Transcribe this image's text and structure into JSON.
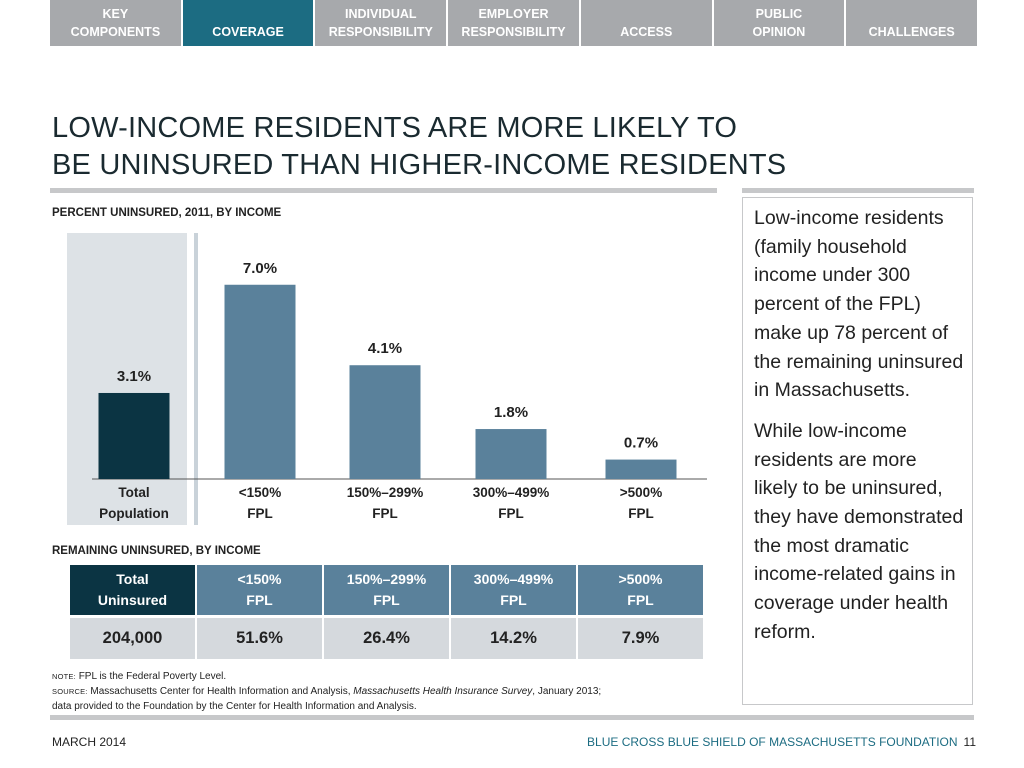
{
  "nav": {
    "tabs": [
      {
        "line1": "KEY",
        "line2": "COMPONENTS",
        "active": false
      },
      {
        "line1": "",
        "line2": "COVERAGE",
        "active": true
      },
      {
        "line1": "INDIVIDUAL",
        "line2": "RESPONSIBILITY",
        "active": false
      },
      {
        "line1": "EMPLOYER",
        "line2": "RESPONSIBILITY",
        "active": false
      },
      {
        "line1": "",
        "line2": "ACCESS",
        "active": false
      },
      {
        "line1": "PUBLIC",
        "line2": "OPINION",
        "active": false
      },
      {
        "line1": "",
        "line2": "CHALLENGES",
        "active": false
      }
    ]
  },
  "title": {
    "line1": "LOW-INCOME RESIDENTS ARE MORE LIKELY TO",
    "line2": "BE UNINSURED THAN HIGHER-INCOME RESIDENTS"
  },
  "chart_label": "PERCENT UNINSURED, 2011, BY INCOME",
  "chart_data": {
    "type": "bar",
    "title": "PERCENT UNINSURED, 2011, BY INCOME",
    "categories": [
      {
        "line1": "Total",
        "line2": "Population"
      },
      {
        "line1": "<150%",
        "line2": "FPL"
      },
      {
        "line1": "150%–299%",
        "line2": "FPL"
      },
      {
        "line1": "300%–499%",
        "line2": "FPL"
      },
      {
        "line1": ">500%",
        "line2": "FPL"
      }
    ],
    "values": [
      3.1,
      7.0,
      4.1,
      1.8,
      0.7
    ],
    "value_labels": [
      "3.1%",
      "7.0%",
      "4.1%",
      "1.8%",
      "0.7%"
    ],
    "ylim": [
      0,
      8
    ],
    "grid": false,
    "colors": {
      "total": "#0b3443",
      "group": "#5a819b",
      "highlight_bg": "#dde2e6",
      "divider": "#c9d2d9",
      "axis": "#555555"
    }
  },
  "table_label": "REMAINING UNINSURED, BY INCOME",
  "table": {
    "headers": [
      {
        "line1": "Total",
        "line2": "Uninsured"
      },
      {
        "line1": "<150%",
        "line2": "FPL"
      },
      {
        "line1": "150%–299%",
        "line2": "FPL"
      },
      {
        "line1": "300%–499%",
        "line2": "FPL"
      },
      {
        "line1": ">500%",
        "line2": "FPL"
      }
    ],
    "values": [
      "204,000",
      "51.6%",
      "26.4%",
      "14.2%",
      "7.9%"
    ]
  },
  "note": {
    "note_tag": "NOTE:",
    "note_text": "FPL is the Federal Poverty Level.",
    "source_tag": "SOURCE:",
    "source_pre": "Massachusetts Center for Health Information and Analysis,",
    "source_italic": "Massachusetts Health Insurance Survey",
    "source_post": ", January 2013;",
    "source_line2": "data provided to the Foundation by the Center for Health Information and Analysis."
  },
  "sidebar": {
    "p1": "Low-income residents (family household income under 300 percent of the FPL) make up 78 percent of the remaining uninsured in Massachusetts.",
    "p2": "While low-income residents are more likely to be uninsured, they have demonstrated the most dramatic income-related gains in coverage under health reform."
  },
  "footer": {
    "date": "MARCH 2014",
    "org": "BLUE CROSS BLUE SHIELD OF MASSACHUSETTS FOUNDATION",
    "page": "11"
  }
}
